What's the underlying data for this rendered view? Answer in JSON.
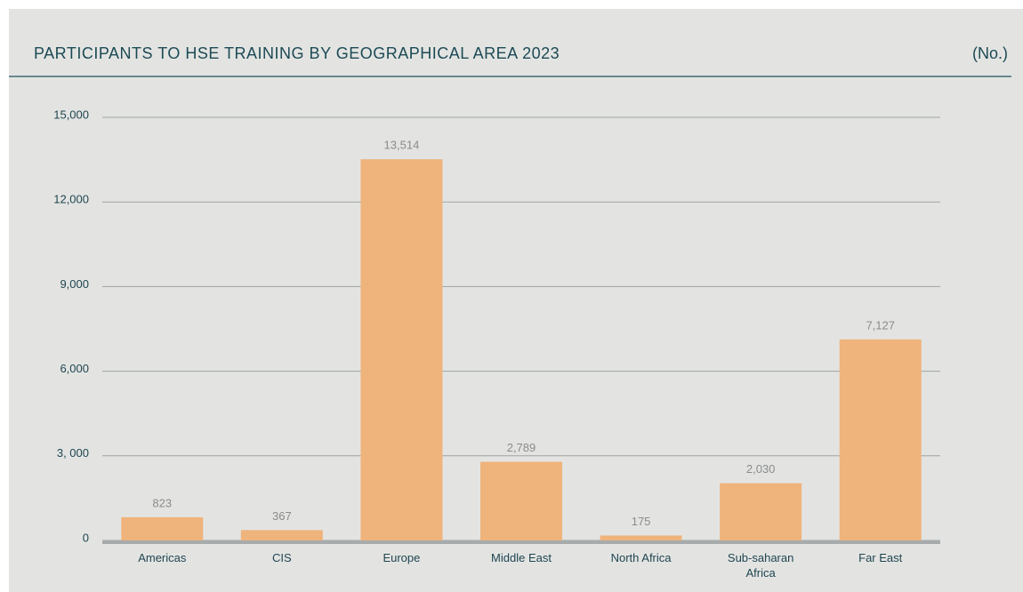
{
  "chart_data": {
    "type": "bar",
    "title": "PARTICIPANTS TO HSE TRAINING BY GEOGRAPHICAL AREA 2023",
    "unit_label": "(No.)",
    "categories": [
      "Americas",
      "CIS",
      "Europe",
      "Middle East",
      "North Africa",
      "Sub-saharan Africa",
      "Far East"
    ],
    "values": [
      823,
      367,
      13514,
      2789,
      175,
      2030,
      7127
    ],
    "value_labels": [
      "823",
      "367",
      "13,514",
      "2,789",
      "175",
      "2,030",
      "7,127"
    ],
    "color": "#efb37c",
    "ylim": [
      0,
      15000
    ],
    "yticks": [
      0,
      {
        "value": 3000,
        "label": "3, 000"
      },
      {
        "value": 6000,
        "label": "6,000"
      },
      {
        "value": 9000,
        "label": "9,000"
      },
      {
        "value": 12000,
        "label": "12,000"
      },
      {
        "value": 15000,
        "label": "15,000"
      }
    ],
    "grid": true
  }
}
